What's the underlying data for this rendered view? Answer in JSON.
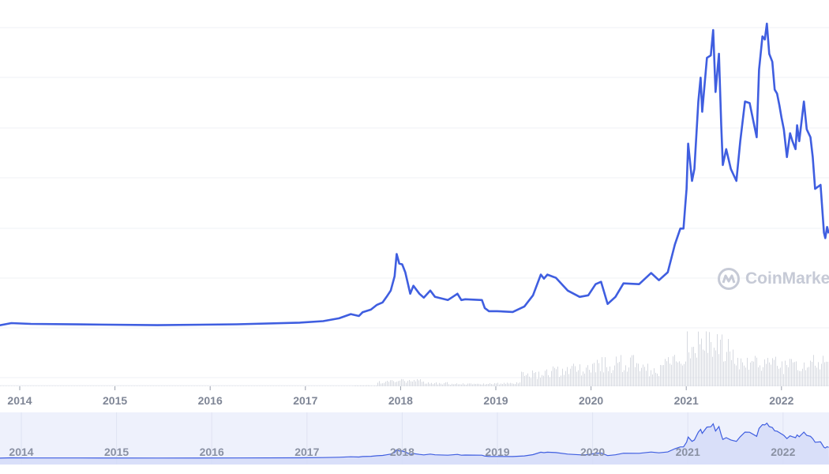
{
  "watermark": {
    "text": "CoinMarketCap"
  },
  "colors": {
    "line": "#3f5ee0",
    "grid": "#eff1f5",
    "volume": "#d6d9e0",
    "navigator_bg": "#eef1fc",
    "navigator_fill": "#d3dbf8",
    "axis_text": "#7f8696"
  },
  "chart_data": {
    "type": "line",
    "title": "",
    "xlabel": "",
    "ylabel": "",
    "x_tick_labels": [
      "2014",
      "2015",
      "2016",
      "2017",
      "2018",
      "2019",
      "2020",
      "2021",
      "2022"
    ],
    "xlim": [
      "2013-10-15",
      "2022-07-01"
    ],
    "ylim": [
      0,
      70000
    ],
    "grid": true,
    "legend": "none",
    "series": [
      {
        "points": [
          [
            "2013-10-15",
            200
          ],
          [
            "2013-11-30",
            680
          ],
          [
            "2014-02-13",
            500
          ],
          [
            "2014-08-15",
            400
          ],
          [
            "2015-06-13",
            240
          ],
          [
            "2016-04-12",
            420
          ],
          [
            "2016-12-10",
            780
          ],
          [
            "2017-03-10",
            1100
          ],
          [
            "2017-05-10",
            1700
          ],
          [
            "2017-06-24",
            2600
          ],
          [
            "2017-07-25",
            2200
          ],
          [
            "2017-08-08",
            3000
          ],
          [
            "2017-09-09",
            3570
          ],
          [
            "2017-10-02",
            4590
          ],
          [
            "2017-10-24",
            5100
          ],
          [
            "2017-11-08",
            6290
          ],
          [
            "2017-11-24",
            7650
          ],
          [
            "2017-12-09",
            10710
          ],
          [
            "2017-12-17",
            15470
          ],
          [
            "2017-12-27",
            13430
          ],
          [
            "2018-01-07",
            13260
          ],
          [
            "2018-01-19",
            11560
          ],
          [
            "2018-02-07",
            6970
          ],
          [
            "2018-02-19",
            8670
          ],
          [
            "2018-03-14",
            6970
          ],
          [
            "2018-03-31",
            6120
          ],
          [
            "2018-04-25",
            7650
          ],
          [
            "2018-05-13",
            6290
          ],
          [
            "2018-07-01",
            5610
          ],
          [
            "2018-07-20",
            6290
          ],
          [
            "2018-08-07",
            6970
          ],
          [
            "2018-08-22",
            5610
          ],
          [
            "2018-09-06",
            5780
          ],
          [
            "2018-11-09",
            5610
          ],
          [
            "2018-11-20",
            3910
          ],
          [
            "2018-12-06",
            3230
          ],
          [
            "2019-01-06",
            3230
          ],
          [
            "2019-03-07",
            3060
          ],
          [
            "2019-04-21",
            4250
          ],
          [
            "2019-05-24",
            6630
          ],
          [
            "2019-06-23",
            11050
          ],
          [
            "2019-07-05",
            10200
          ],
          [
            "2019-07-18",
            11050
          ],
          [
            "2019-08-20",
            10370
          ],
          [
            "2019-10-04",
            7650
          ],
          [
            "2019-11-19",
            6290
          ],
          [
            "2019-12-22",
            6630
          ],
          [
            "2020-01-19",
            9010
          ],
          [
            "2020-02-09",
            9520
          ],
          [
            "2020-03-05",
            4760
          ],
          [
            "2020-04-04",
            6290
          ],
          [
            "2020-05-05",
            9180
          ],
          [
            "2020-07-04",
            9010
          ],
          [
            "2020-08-19",
            11390
          ],
          [
            "2020-09-18",
            9860
          ],
          [
            "2020-10-22",
            11560
          ],
          [
            "2020-11-18",
            17510
          ],
          [
            "2020-12-09",
            20910
          ],
          [
            "2020-12-21",
            20910
          ],
          [
            "2020-12-28",
            26010
          ],
          [
            "2021-01-02",
            29410
          ],
          [
            "2021-01-08",
            39100
          ],
          [
            "2021-01-23",
            31110
          ],
          [
            "2021-02-01",
            33660
          ],
          [
            "2021-02-16",
            48110
          ],
          [
            "2021-02-25",
            53210
          ],
          [
            "2021-03-03",
            45900
          ],
          [
            "2021-03-21",
            57460
          ],
          [
            "2021-04-05",
            57970
          ],
          [
            "2021-04-14",
            63410
          ],
          [
            "2021-04-23",
            50150
          ],
          [
            "2021-05-06",
            58310
          ],
          [
            "2021-05-15",
            43010
          ],
          [
            "2021-05-21",
            34510
          ],
          [
            "2021-06-03",
            37910
          ],
          [
            "2021-06-21",
            33660
          ],
          [
            "2021-07-12",
            31110
          ],
          [
            "2021-07-27",
            39610
          ],
          [
            "2021-08-14",
            48110
          ],
          [
            "2021-09-01",
            47770
          ],
          [
            "2021-09-28",
            40460
          ],
          [
            "2021-10-07",
            54910
          ],
          [
            "2021-10-20",
            62050
          ],
          [
            "2021-10-29",
            61370
          ],
          [
            "2021-11-06",
            64770
          ],
          [
            "2021-11-15",
            58310
          ],
          [
            "2021-11-27",
            56610
          ],
          [
            "2021-12-06",
            50660
          ],
          [
            "2021-12-15",
            49810
          ],
          [
            "2021-12-24",
            47260
          ],
          [
            "2022-01-01",
            44710
          ],
          [
            "2022-01-10",
            42160
          ],
          [
            "2022-01-22",
            36210
          ],
          [
            "2022-02-03",
            41310
          ],
          [
            "2022-02-12",
            39610
          ],
          [
            "2022-02-24",
            37910
          ],
          [
            "2022-03-02",
            43010
          ],
          [
            "2022-03-10",
            39610
          ],
          [
            "2022-03-28",
            48110
          ],
          [
            "2022-04-08",
            42160
          ],
          [
            "2022-04-22",
            40460
          ],
          [
            "2022-05-01",
            36210
          ],
          [
            "2022-05-10",
            29410
          ],
          [
            "2022-05-31",
            30260
          ],
          [
            "2022-06-13",
            20060
          ],
          [
            "2022-06-18",
            18870
          ],
          [
            "2022-06-25",
            21250
          ],
          [
            "2022-07-01",
            19890
          ]
        ]
      }
    ],
    "volume": {
      "type": "bar",
      "quarters": [
        "2017-Q3",
        "2017-Q4",
        "2018-Q1",
        "2018-Q2",
        "2018-Q3",
        "2018-Q4",
        "2019-Q1",
        "2019-Q2",
        "2019-Q3",
        "2019-Q4",
        "2020-Q1",
        "2020-Q2",
        "2020-Q3",
        "2020-Q4",
        "2021-Q1",
        "2021-Q2",
        "2021-Q3",
        "2021-Q4",
        "2022-Q1",
        "2022-Q2"
      ],
      "values": [
        1,
        6,
        7,
        4,
        3,
        3,
        4,
        16,
        20,
        22,
        28,
        30,
        22,
        32,
        55,
        50,
        30,
        30,
        27,
        32
      ]
    },
    "navigator": {
      "x_tick_labels": [
        "2014",
        "2015",
        "2016",
        "2017",
        "2018",
        "2019",
        "2020",
        "2021",
        "2022"
      ]
    }
  }
}
